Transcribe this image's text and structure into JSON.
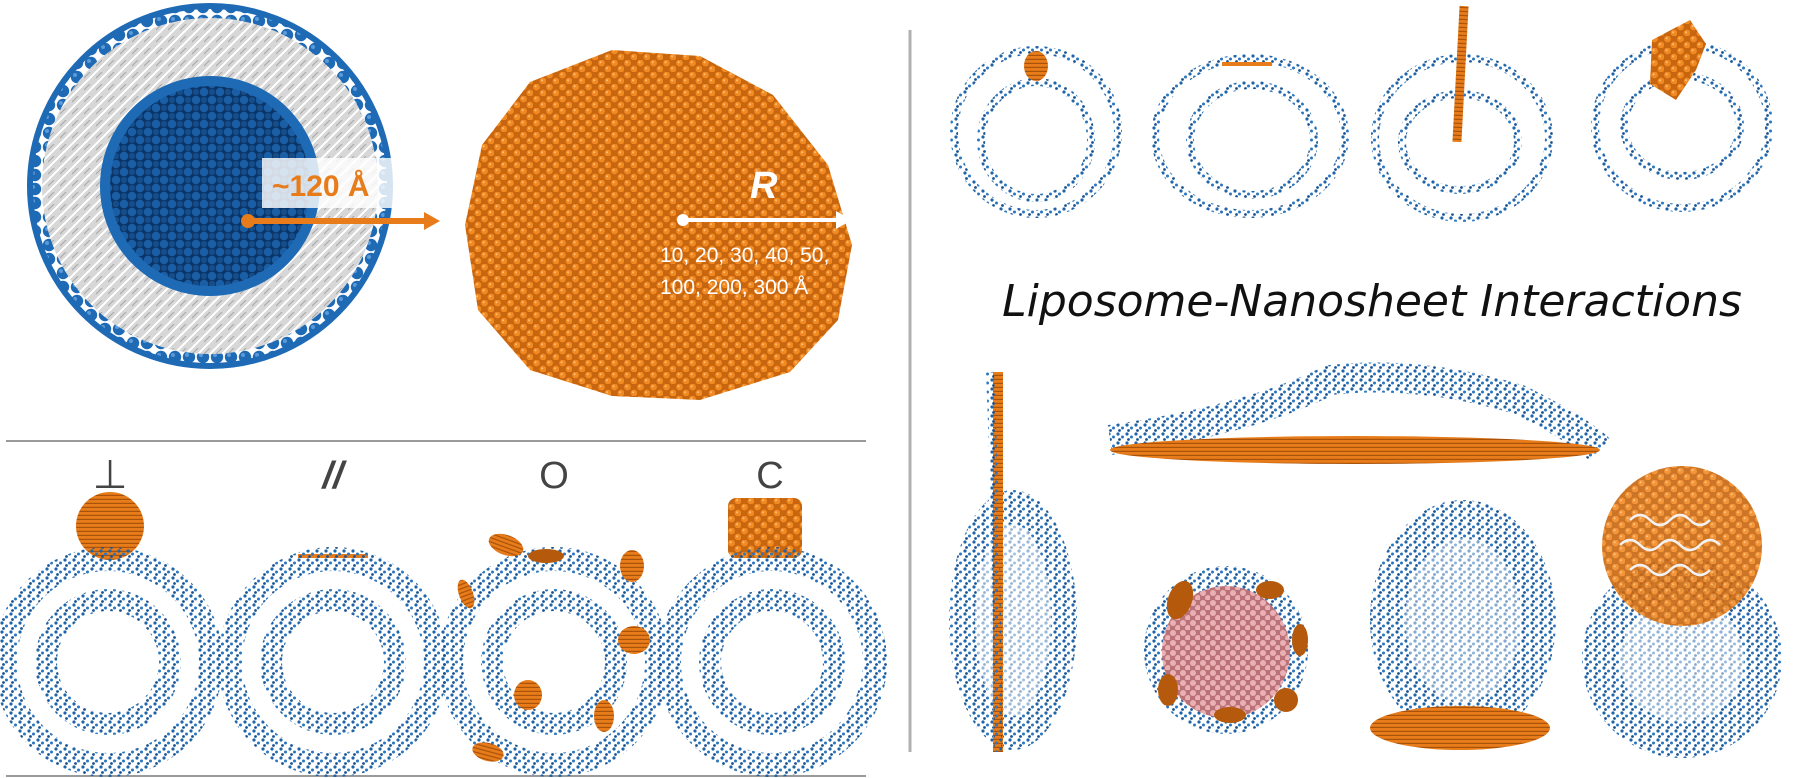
{
  "panel_a": {
    "liposome_radius_label": "~120 Å",
    "sheet_radius_symbol": "R",
    "sheet_radius_values_line1": "10, 20, 30, 40, 50,",
    "sheet_radius_values_line2": "100, 200, 300 Å"
  },
  "panel_b": {
    "orientation_labels": [
      "⊥",
      "//",
      "O",
      "C"
    ]
  },
  "panel_c": {
    "title": "Liposome-Nanosheet Interactions"
  },
  "colors": {
    "lipid_head_blue": "#1f63a8",
    "lipid_dark_blue": "#0f3f78",
    "nanosheet_orange": "#e87c1a",
    "nanosheet_dark": "#b55a0c",
    "lipid_tail_white": "#f2f2f2",
    "divider_gray": "#9a9a9a",
    "core_pink": "#e8a4a8"
  }
}
